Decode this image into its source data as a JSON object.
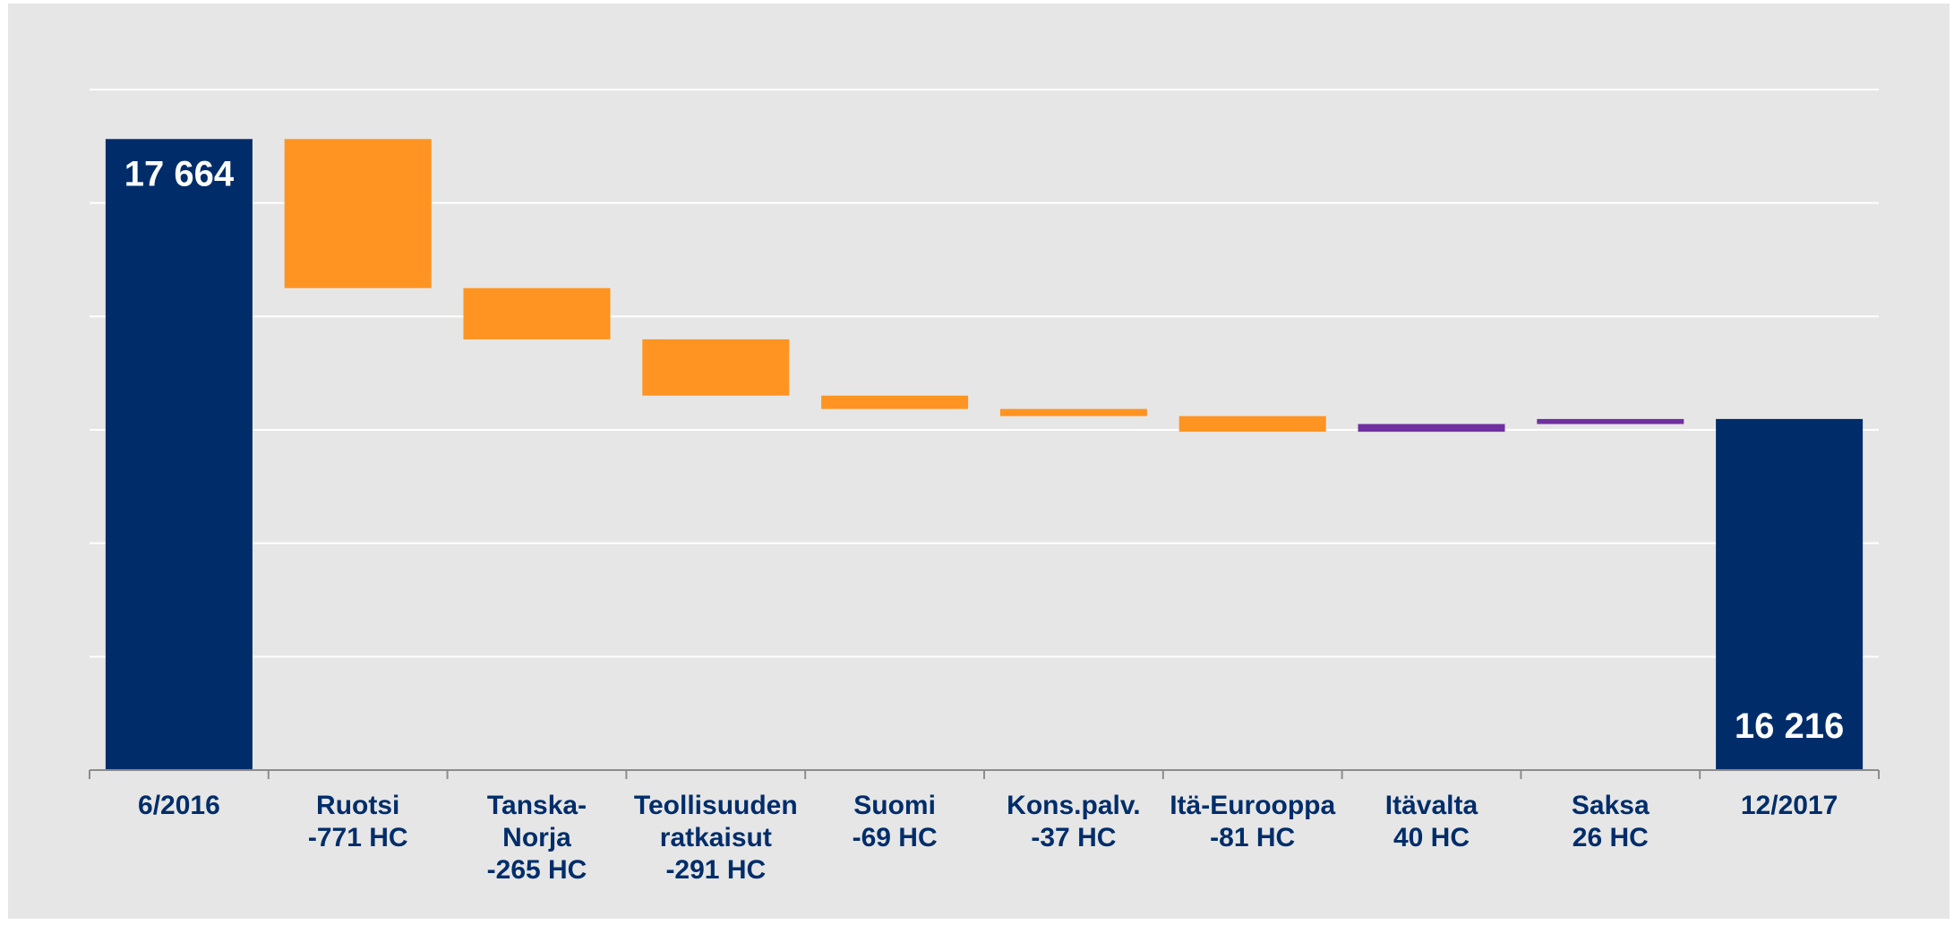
{
  "chart_data": {
    "type": "bar",
    "subtype": "waterfall",
    "title": "",
    "xlabel": "",
    "ylabel": "",
    "ylim": [
      14400,
      17920
    ],
    "grid": true,
    "legend": "none",
    "categories": [
      {
        "lines": [
          "6/2016"
        ],
        "kind": "total",
        "value": 17664,
        "label": "17 664"
      },
      {
        "lines": [
          "Ruotsi",
          "-771 HC"
        ],
        "kind": "delta",
        "value": -771
      },
      {
        "lines": [
          "Tanska-",
          "Norja",
          "-265 HC"
        ],
        "kind": "delta",
        "value": -265
      },
      {
        "lines": [
          "Teollisuuden",
          "ratkaisut",
          "-291 HC"
        ],
        "kind": "delta",
        "value": -291
      },
      {
        "lines": [
          "Suomi",
          "-69 HC"
        ],
        "kind": "delta",
        "value": -69
      },
      {
        "lines": [
          "Kons.palv.",
          "-37 HC"
        ],
        "kind": "delta",
        "value": -37
      },
      {
        "lines": [
          "Itä-Eurooppa",
          "-81 HC"
        ],
        "kind": "delta",
        "value": -81
      },
      {
        "lines": [
          "Itävalta",
          "40 HC"
        ],
        "kind": "delta",
        "value": 40
      },
      {
        "lines": [
          "Saksa",
          "26 HC"
        ],
        "kind": "delta",
        "value": 26
      },
      {
        "lines": [
          "12/2017"
        ],
        "kind": "total",
        "value": 16216,
        "label": "16 216"
      }
    ],
    "colors": {
      "background": "#e6e6e6",
      "total": "#002d6a",
      "decrease": "#ff9422",
      "increase": "#7030a0",
      "grid": "#ffffff",
      "axis": "#8c8c8c",
      "tick_label": "#002d6a",
      "total_label": "#ffffff"
    }
  }
}
